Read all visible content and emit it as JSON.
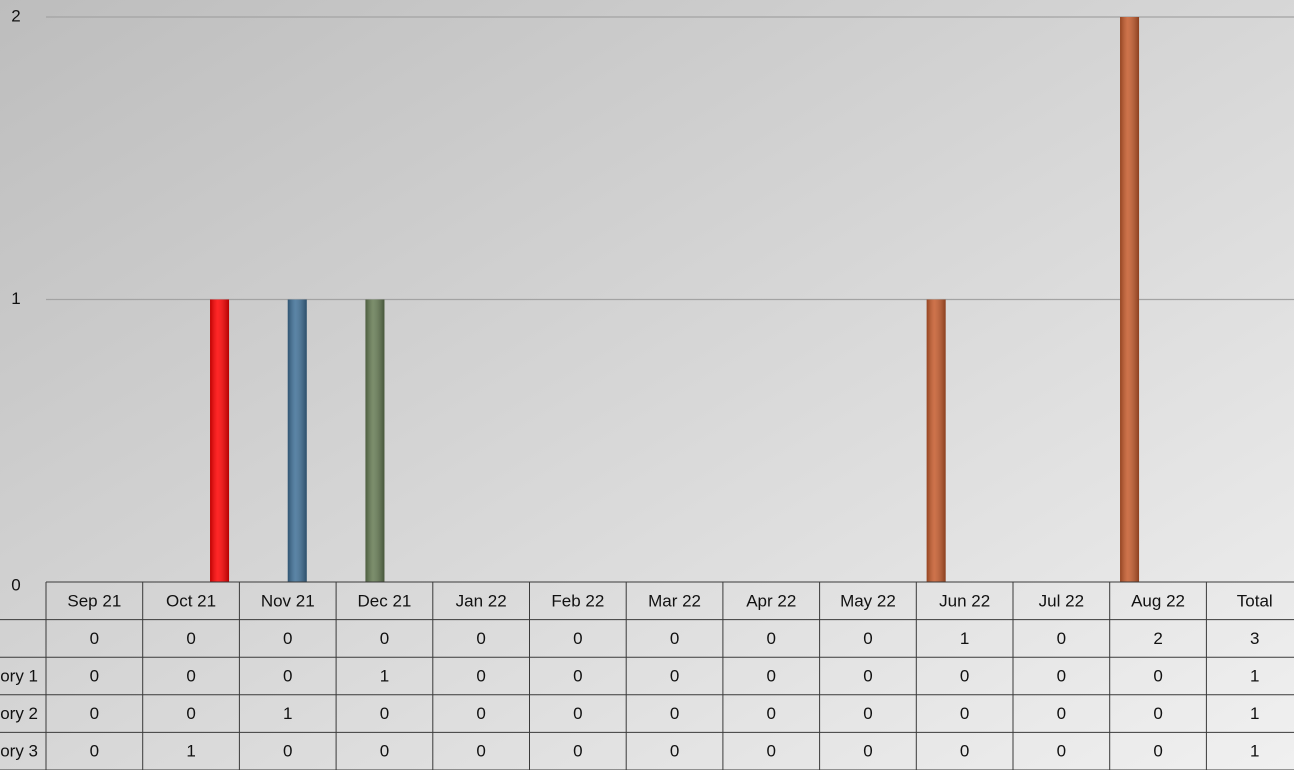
{
  "chart_data": {
    "type": "bar",
    "categories": [
      "Sep 21",
      "Oct 21",
      "Nov 21",
      "Dec 21",
      "Jan 22",
      "Feb 22",
      "Mar 22",
      "Apr 22",
      "May 22",
      "Jun 22",
      "Jul 22",
      "Aug 22"
    ],
    "total_label": "Total",
    "series": [
      {
        "color": "#c55a2b",
        "values": [
          0,
          0,
          0,
          0,
          0,
          0,
          0,
          0,
          0,
          1,
          0,
          2
        ],
        "total": 3
      },
      {
        "name": "ory 1",
        "color": "#647a52",
        "values": [
          0,
          0,
          0,
          1,
          0,
          0,
          0,
          0,
          0,
          0,
          0,
          0
        ],
        "total": 1
      },
      {
        "name": "ory 2",
        "color": "#3e6f96",
        "values": [
          0,
          0,
          1,
          0,
          0,
          0,
          0,
          0,
          0,
          0,
          0,
          0
        ],
        "total": 1
      },
      {
        "name": "ory 3",
        "color": "#ff0000",
        "values": [
          0,
          1,
          0,
          0,
          0,
          0,
          0,
          0,
          0,
          0,
          0,
          0
        ],
        "total": 1
      }
    ],
    "ylim": [
      0,
      2
    ],
    "yticks": [
      0,
      1,
      2
    ],
    "grid": true
  }
}
